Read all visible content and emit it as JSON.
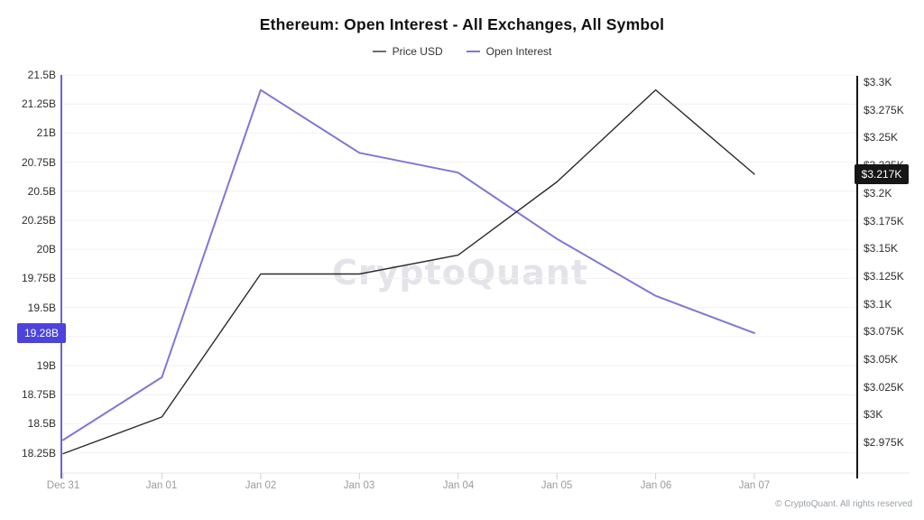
{
  "chart": {
    "title": "Ethereum: Open Interest - All Exchanges, All Symbol",
    "watermark": "CryptoQuant",
    "copyright": "© CryptoQuant. All rights reserved",
    "legend": [
      {
        "label": "Price USD",
        "color": "#6d6d6d"
      },
      {
        "label": "Open Interest",
        "color": "#7e77d6"
      }
    ]
  },
  "chart_data": {
    "type": "line",
    "title": "Ethereum: Open Interest - All Exchanges, All Symbol",
    "categories": [
      "Dec 31",
      "Jan 01",
      "Jan 02",
      "Jan 03",
      "Jan 04",
      "Jan 05",
      "Jan 06",
      "Jan 07"
    ],
    "series": [
      {
        "name": "Price USD",
        "axis": "right",
        "color": "#2b2b2b",
        "unit": "K USD",
        "values": [
          2.965,
          2.998,
          3.127,
          3.127,
          3.144,
          3.21,
          3.293,
          3.217
        ]
      },
      {
        "name": "Open Interest",
        "axis": "left",
        "color": "#7e77d6",
        "unit": "B USD",
        "values": [
          18.36,
          18.9,
          21.37,
          20.83,
          20.66,
          20.09,
          19.6,
          19.28
        ]
      }
    ],
    "left_axis": {
      "title": "Open Interest",
      "range": [
        18.25,
        21.5
      ],
      "tick_values": [
        21.5,
        21.25,
        21,
        20.75,
        20.5,
        20.25,
        20,
        19.75,
        19.5,
        19.25,
        19,
        18.75,
        18.5,
        18.25
      ],
      "tick_labels": [
        "21.5B",
        "21.25B",
        "21B",
        "20.75B",
        "20.5B",
        "20.25B",
        "20B",
        "19.75B",
        "19.5B",
        "19.25B",
        "19B",
        "18.75B",
        "18.5B",
        "18.25B"
      ],
      "badge": {
        "label": "19.28B",
        "value": 19.28,
        "bg": "#4c43dd"
      },
      "axis_line_color": "#6b61d2"
    },
    "right_axis": {
      "title": "Price USD",
      "range": [
        2.975,
        3.3
      ],
      "tick_values": [
        3.3,
        3.275,
        3.25,
        3.225,
        3.2,
        3.175,
        3.15,
        3.125,
        3.1,
        3.075,
        3.05,
        3.025,
        3.0,
        2.975
      ],
      "tick_labels": [
        "$3.3K",
        "$3.275K",
        "$3.25K",
        "$3.225K",
        "$3.2K",
        "$3.175K",
        "$3.15K",
        "$3.125K",
        "$3.1K",
        "$3.075K",
        "$3.05K",
        "$3.025K",
        "$3K",
        "$2.975K"
      ],
      "badge": {
        "label": "$3.217K",
        "value": 3.217,
        "bg": "#161616"
      },
      "axis_line_color": "#141414"
    },
    "grid": "horizontal",
    "legend_position": "top"
  }
}
